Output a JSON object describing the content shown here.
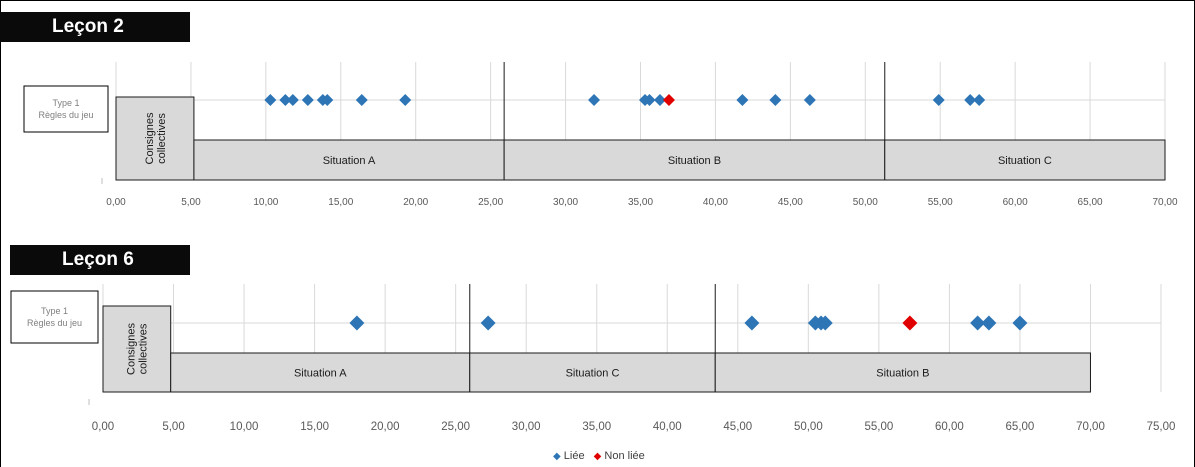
{
  "chart_data": [
    {
      "type": "scatter",
      "title": "Leçon 2",
      "xlim": [
        0,
        70
      ],
      "x_ticks": [
        "0,00",
        "5,00",
        "10,00",
        "15,00",
        "20,00",
        "25,00",
        "30,00",
        "35,00",
        "40,00",
        "45,00",
        "50,00",
        "55,00",
        "60,00",
        "65,00",
        "70,00"
      ],
      "grid": true,
      "category_label": [
        "Type 1",
        "Règles du jeu"
      ],
      "segments": [
        {
          "label": "Consignes collectives",
          "start": 0.0,
          "end": 5.2
        },
        {
          "label": "Situation A",
          "start": 5.2,
          "end": 25.9
        },
        {
          "label": "Situation B",
          "start": 25.9,
          "end": 51.3
        },
        {
          "label": "Situation C",
          "start": 51.3,
          "end": 70.0
        }
      ],
      "boundaries": [
        25.9,
        51.3
      ],
      "series": [
        {
          "name": "Liée",
          "color": "#2e75b6",
          "x": [
            10.3,
            11.3,
            11.8,
            12.8,
            13.8,
            14.1,
            16.4,
            19.3,
            31.9,
            35.3,
            35.6,
            36.3,
            41.8,
            44.0,
            46.3,
            54.9,
            57.0,
            57.6
          ]
        },
        {
          "name": "Non liée",
          "color": "#e00000",
          "x": [
            36.9
          ]
        }
      ]
    },
    {
      "type": "scatter",
      "title": "Leçon 6",
      "xlim": [
        0,
        75
      ],
      "x_ticks": [
        "0,00",
        "5,00",
        "10,00",
        "15,00",
        "20,00",
        "25,00",
        "30,00",
        "35,00",
        "40,00",
        "45,00",
        "50,00",
        "55,00",
        "60,00",
        "65,00",
        "70,00",
        "75,00"
      ],
      "grid": true,
      "category_label": [
        "Type 1",
        "Règles du jeu"
      ],
      "segments": [
        {
          "label": "Consignes collectives",
          "start": 0.0,
          "end": 4.8
        },
        {
          "label": "Situation A",
          "start": 4.8,
          "end": 26.0
        },
        {
          "label": "Situation C",
          "start": 26.0,
          "end": 43.4
        },
        {
          "label": "Situation B",
          "start": 43.4,
          "end": 70.0
        }
      ],
      "boundaries": [
        26.0,
        43.4
      ],
      "series": [
        {
          "name": "Liée",
          "color": "#2e75b6",
          "x": [
            18.0,
            27.3,
            46.0,
            50.5,
            50.9,
            51.2,
            62.0,
            62.8,
            65.0
          ]
        },
        {
          "name": "Non liée",
          "color": "#e00000",
          "x": [
            57.2
          ]
        }
      ]
    }
  ],
  "legend": {
    "items": [
      "Liée",
      "Non liée"
    ],
    "position": "bottom"
  }
}
